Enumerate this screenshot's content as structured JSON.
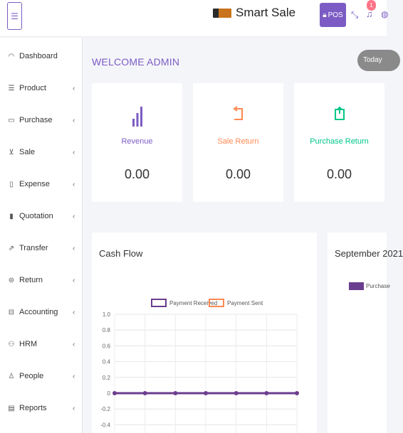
{
  "header": {
    "menu_icon": "hamburger-icon",
    "brand_name": "Smart Sale",
    "pos_label": "POS",
    "notification_count": "1",
    "accent_color": "#7c5cc4"
  },
  "sidebar": {
    "items": [
      {
        "label": "Dashboard",
        "icon": "dashboard-icon"
      },
      {
        "label": "Product",
        "icon": "product-icon"
      },
      {
        "label": "Purchase",
        "icon": "purchase-icon"
      },
      {
        "label": "Sale",
        "icon": "cart-icon"
      },
      {
        "label": "Expense",
        "icon": "expense-icon"
      },
      {
        "label": "Quotation",
        "icon": "quotation-icon"
      },
      {
        "label": "Transfer",
        "icon": "transfer-icon"
      },
      {
        "label": "Return",
        "icon": "return-icon"
      },
      {
        "label": "Accounting",
        "icon": "accounting-icon"
      },
      {
        "label": "HRM",
        "icon": "hrm-icon"
      },
      {
        "label": "People",
        "icon": "people-icon"
      },
      {
        "label": "Reports",
        "icon": "reports-icon"
      }
    ],
    "chevron": "‹"
  },
  "main": {
    "welcome": "WELCOME ADMIN",
    "today_label": "Today",
    "cards": [
      {
        "title": "Revenue",
        "value": "0.00",
        "color": "#7c5cc4",
        "icon": "bar-chart-icon"
      },
      {
        "title": "Sale Return",
        "value": "0.00",
        "color": "#ff8952",
        "icon": "return-icon"
      },
      {
        "title": "Purchase Return",
        "value": "0.00",
        "color": "#00c689",
        "icon": "refresh-icon"
      }
    ],
    "cash_flow_title": "Cash Flow",
    "month_title": "September 2021",
    "month_legend": "Purchase"
  },
  "chart_data": {
    "type": "line",
    "title": "Cash Flow",
    "series": [
      {
        "name": "Payment Received",
        "values": [
          0,
          0,
          0,
          0,
          0,
          0,
          0
        ],
        "color": "#6b3d8f"
      },
      {
        "name": "Payment Sent",
        "values": [
          0,
          0,
          0,
          0,
          0,
          0,
          0
        ],
        "color": "#ff8952"
      }
    ],
    "y_ticks": [
      "1.0",
      "0.8",
      "0.6",
      "0.4",
      "0.2",
      "0",
      "-0.2",
      "-0.4"
    ],
    "ylim": [
      -0.4,
      1.0
    ],
    "grid": true,
    "legend": "top-center"
  }
}
